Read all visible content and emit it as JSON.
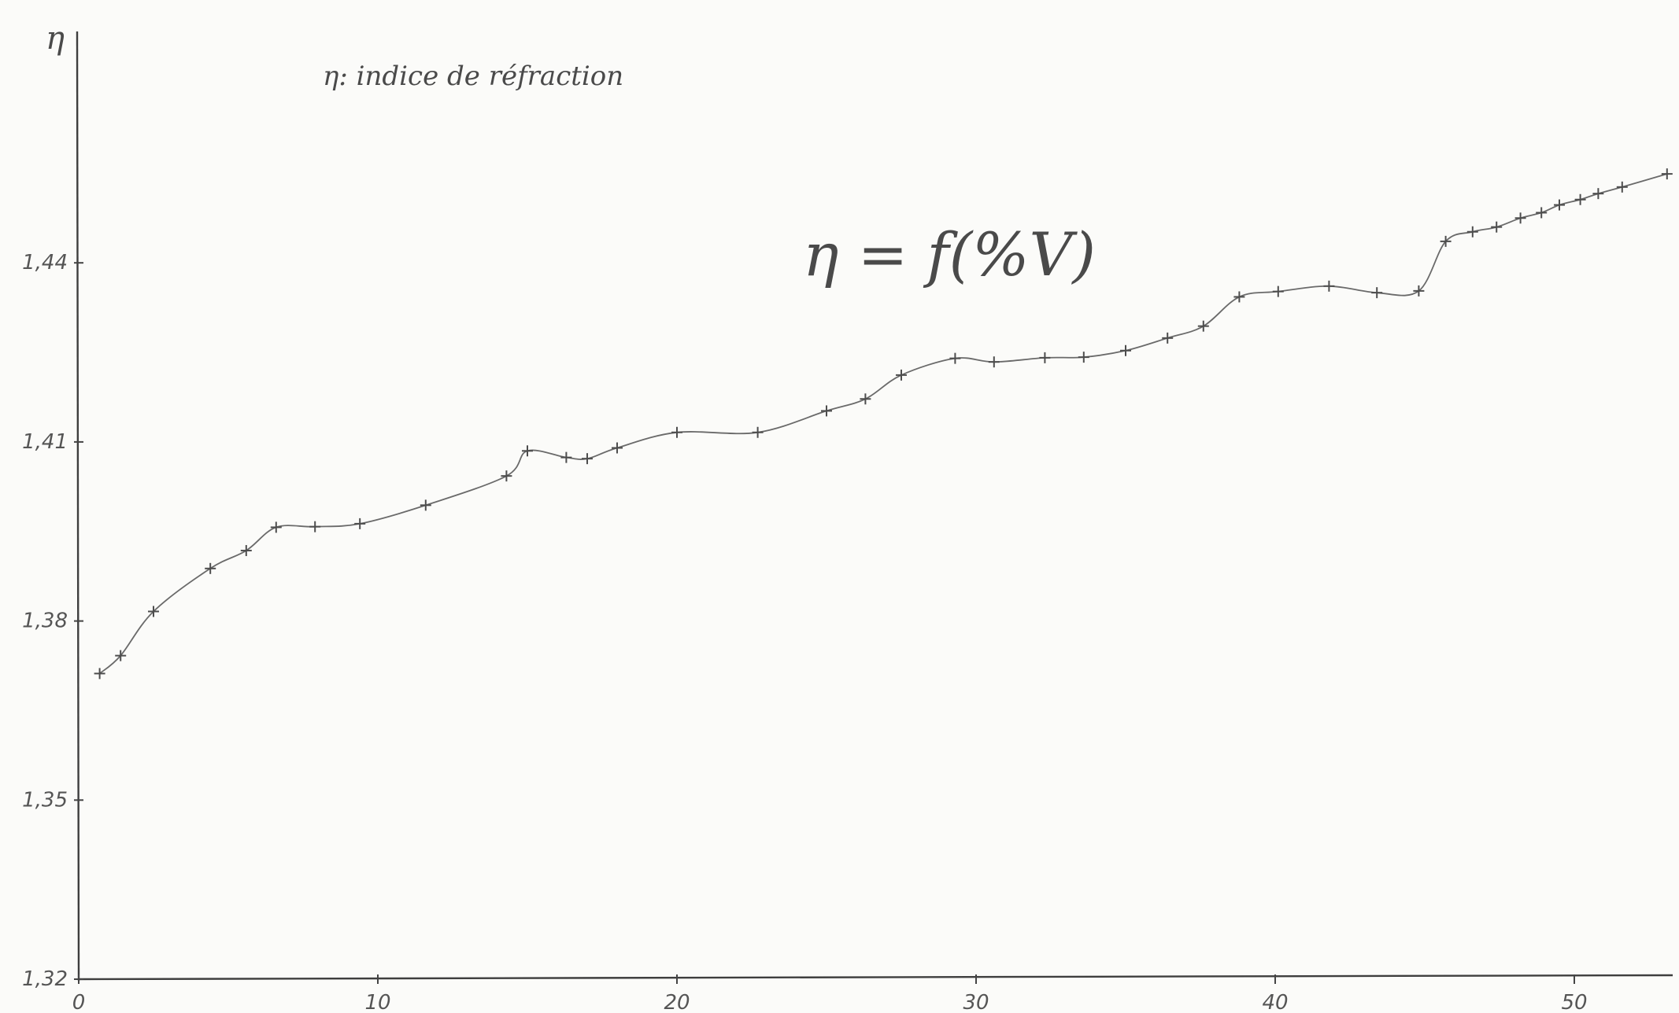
{
  "chart_data": {
    "type": "line",
    "title": "η = f(%V)",
    "subtitle": "η: indice de réfraction",
    "ylabel": "η",
    "xlabel": "",
    "xlim": [
      0,
      54
    ],
    "ylim": [
      1.32,
      1.465
    ],
    "x_ticks": [
      0,
      10,
      20,
      30,
      40,
      50
    ],
    "x_tick_labels": [
      "0",
      "10",
      "20",
      "30",
      "40",
      "50"
    ],
    "y_ticks": [
      1.32,
      1.35,
      1.38,
      1.41,
      1.44
    ],
    "y_tick_labels": [
      "1,32",
      "1,35",
      "1,38",
      "1,41",
      "1,44"
    ],
    "grid": false,
    "legend": "none",
    "series": [
      {
        "marker": "+",
        "x": [
          0.7,
          1.4,
          2.5,
          4.4,
          5.6,
          6.6,
          7.9,
          9.4,
          11.6,
          14.3,
          15.0,
          16.3,
          17.0,
          18.0,
          20.0,
          22.7,
          25.0,
          26.3,
          27.5,
          29.3,
          30.6,
          32.3,
          33.6,
          35.0,
          36.4,
          37.6,
          38.8,
          40.1,
          41.8,
          43.4,
          44.8,
          45.7,
          46.6,
          47.4,
          48.2,
          48.9,
          49.5,
          50.2,
          50.8,
          51.6,
          53.1
        ],
        "y": [
          1.3712,
          1.3742,
          1.3816,
          1.3888,
          1.3918,
          1.3957,
          1.3958,
          1.3963,
          1.3994,
          1.4043,
          1.4085,
          1.4074,
          1.4072,
          1.409,
          1.4116,
          1.4116,
          1.4152,
          1.4172,
          1.4212,
          1.424,
          1.4234,
          1.4241,
          1.4242,
          1.4253,
          1.4274,
          1.4294,
          1.4343,
          1.4352,
          1.4361,
          1.435,
          1.4353,
          1.4436,
          1.4452,
          1.446,
          1.4475,
          1.4484,
          1.4497,
          1.4506,
          1.4516,
          1.4527,
          1.4549
        ]
      }
    ]
  }
}
